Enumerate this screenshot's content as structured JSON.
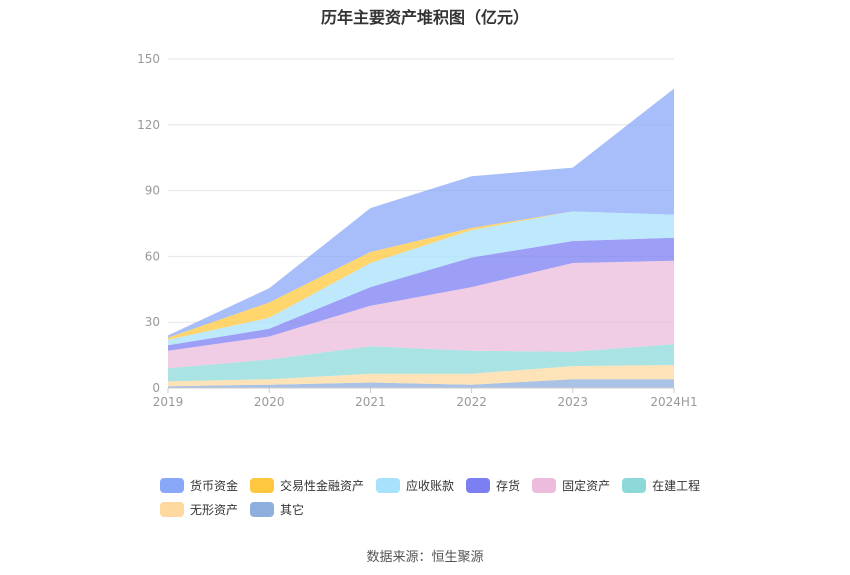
{
  "title": "历年主要资产堆积图（亿元）",
  "source": "数据来源：恒生聚源",
  "chart_data": {
    "type": "area",
    "stacked": true,
    "title": "历年主要资产堆积图（亿元）",
    "categories": [
      "2019",
      "2020",
      "2021",
      "2022",
      "2023",
      "2024H1"
    ],
    "yticks": [
      0,
      30,
      60,
      90,
      120,
      150
    ],
    "ylim": [
      0,
      150
    ],
    "grid": true,
    "legend_position": "bottom",
    "series": [
      {
        "name": "其它",
        "color": "#8eaedd",
        "values": [
          0.8,
          1.5,
          2.5,
          1.5,
          4.0,
          4.0
        ]
      },
      {
        "name": "无形资产",
        "color": "#fdd9a0",
        "values": [
          2.2,
          2.5,
          4.0,
          5.0,
          6.0,
          6.5
        ]
      },
      {
        "name": "在建工程",
        "color": "#8dd9d9",
        "values": [
          6.0,
          9.0,
          12.5,
          10.5,
          6.5,
          9.5
        ]
      },
      {
        "name": "固定资产",
        "color": "#ecbcdc",
        "values": [
          8.0,
          10.5,
          18.5,
          29.0,
          40.5,
          38.0
        ]
      },
      {
        "name": "存货",
        "color": "#7b7ff2",
        "values": [
          2.5,
          3.5,
          8.5,
          13.5,
          10.0,
          10.5
        ]
      },
      {
        "name": "应收账款",
        "color": "#a8e1fb",
        "values": [
          2.5,
          5.0,
          11.0,
          12.5,
          13.5,
          10.5
        ]
      },
      {
        "name": "交易性金融资产",
        "color": "#ffc73d",
        "values": [
          1.0,
          7.0,
          5.0,
          1.0,
          0.0,
          0.0
        ]
      },
      {
        "name": "货币资金",
        "color": "#8aa8f8",
        "values": [
          1.0,
          6.5,
          20.0,
          23.5,
          20.0,
          57.5
        ]
      }
    ]
  },
  "legend": {
    "row1": [
      {
        "name": "货币资金",
        "color": "#8aa8f8"
      },
      {
        "name": "交易性金融资产",
        "color": "#ffc73d"
      },
      {
        "name": "应收账款",
        "color": "#a8e1fb"
      },
      {
        "name": "存货",
        "color": "#7b7ff2"
      },
      {
        "name": "固定资产",
        "color": "#ecbcdc"
      },
      {
        "name": "在建工程",
        "color": "#8dd9d9"
      }
    ],
    "row2": [
      {
        "name": "无形资产",
        "color": "#fdd9a0"
      },
      {
        "name": "其它",
        "color": "#8eaedd"
      }
    ]
  }
}
